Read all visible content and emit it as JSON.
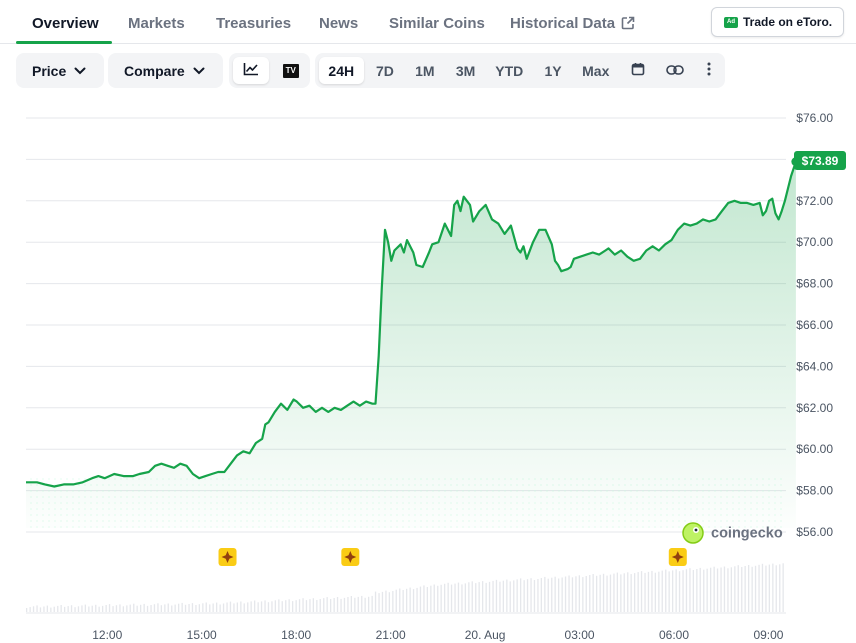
{
  "tabs": [
    {
      "label": "Overview",
      "active": true
    },
    {
      "label": "Markets"
    },
    {
      "label": "Treasuries"
    },
    {
      "label": "News"
    },
    {
      "label": "Similar Coins"
    },
    {
      "label": "Historical Data",
      "icon": "external-link-icon"
    }
  ],
  "ad_button": {
    "badge": "Ad",
    "label": "Trade on eToro."
  },
  "toolbar": {
    "price_label": "Price",
    "compare_label": "Compare",
    "chart_type_icons": [
      "line-chart-icon",
      "tradingview-icon"
    ],
    "tradingview_logo_text": "TV",
    "ranges": [
      "24H",
      "7D",
      "1M",
      "3M",
      "YTD",
      "1Y",
      "Max"
    ],
    "active_range": "24H",
    "action_icons": [
      "calendar-icon",
      "link-icon",
      "more-vertical-icon"
    ]
  },
  "watermark": "coingecko",
  "colors": {
    "accent": "#16a34a",
    "line": "#16a34a",
    "grid": "#e5e7eb",
    "event_marker": "#facc15"
  },
  "chart_data": {
    "type": "area",
    "y_ticks": [
      "$76.00",
      "$74.00",
      "$72.00",
      "$70.00",
      "$68.00",
      "$66.00",
      "$64.00",
      "$62.00",
      "$60.00",
      "$58.00",
      "$56.00"
    ],
    "ylim": [
      55,
      76
    ],
    "x_ticks": [
      {
        "label": "12:00",
        "t": 2.58
      },
      {
        "label": "15:00",
        "t": 5.58
      },
      {
        "label": "18:00",
        "t": 8.58
      },
      {
        "label": "21:00",
        "t": 11.58
      },
      {
        "label": "20. Aug",
        "t": 14.58
      },
      {
        "label": "03:00",
        "t": 17.58
      },
      {
        "label": "06:00",
        "t": 20.58
      },
      {
        "label": "09:00",
        "t": 23.58
      }
    ],
    "x_range_hours": [
      0,
      24.2
    ],
    "current_price": "$73.89",
    "event_markers_t": [
      6.4,
      10.3,
      20.7
    ],
    "series": [
      {
        "values": [
          [
            0.0,
            58.4
          ],
          [
            0.35,
            58.4
          ],
          [
            0.6,
            58.3
          ],
          [
            0.9,
            58.2
          ],
          [
            1.2,
            58.3
          ],
          [
            1.5,
            58.3
          ],
          [
            1.8,
            58.4
          ],
          [
            2.1,
            58.6
          ],
          [
            2.3,
            58.7
          ],
          [
            2.5,
            58.6
          ],
          [
            2.8,
            58.8
          ],
          [
            3.1,
            58.7
          ],
          [
            3.4,
            58.7
          ],
          [
            3.6,
            58.8
          ],
          [
            3.9,
            58.9
          ],
          [
            4.1,
            59.2
          ],
          [
            4.3,
            59.3
          ],
          [
            4.5,
            59.2
          ],
          [
            4.7,
            59.1
          ],
          [
            4.9,
            59.3
          ],
          [
            5.1,
            59.2
          ],
          [
            5.3,
            58.8
          ],
          [
            5.5,
            58.6
          ],
          [
            5.7,
            58.7
          ],
          [
            5.9,
            58.8
          ],
          [
            6.1,
            58.9
          ],
          [
            6.3,
            58.9
          ],
          [
            6.5,
            59.3
          ],
          [
            6.7,
            59.7
          ],
          [
            6.9,
            59.9
          ],
          [
            7.1,
            59.8
          ],
          [
            7.3,
            60.3
          ],
          [
            7.5,
            60.5
          ],
          [
            7.6,
            61.2
          ],
          [
            7.7,
            61.3
          ],
          [
            7.9,
            61.8
          ],
          [
            8.0,
            62.0
          ],
          [
            8.1,
            62.2
          ],
          [
            8.3,
            61.9
          ],
          [
            8.5,
            62.4
          ],
          [
            8.6,
            62.3
          ],
          [
            8.8,
            62.0
          ],
          [
            9.0,
            62.1
          ],
          [
            9.2,
            61.8
          ],
          [
            9.4,
            62.0
          ],
          [
            9.6,
            61.8
          ],
          [
            9.8,
            62.0
          ],
          [
            10.0,
            61.9
          ],
          [
            10.2,
            62.1
          ],
          [
            10.4,
            62.3
          ],
          [
            10.6,
            62.1
          ],
          [
            10.8,
            62.3
          ],
          [
            11.0,
            62.2
          ],
          [
            11.1,
            62.2
          ],
          [
            11.2,
            64.5
          ],
          [
            11.3,
            67.8
          ],
          [
            11.4,
            70.6
          ],
          [
            11.5,
            70.0
          ],
          [
            11.6,
            69.1
          ],
          [
            11.7,
            69.6
          ],
          [
            11.9,
            69.9
          ],
          [
            12.0,
            69.5
          ],
          [
            12.1,
            70.1
          ],
          [
            12.3,
            69.5
          ],
          [
            12.4,
            68.9
          ],
          [
            12.6,
            68.8
          ],
          [
            12.8,
            69.5
          ],
          [
            12.9,
            69.9
          ],
          [
            13.1,
            70.0
          ],
          [
            13.3,
            70.9
          ],
          [
            13.5,
            70.3
          ],
          [
            13.6,
            71.8
          ],
          [
            13.7,
            72.0
          ],
          [
            13.8,
            71.5
          ],
          [
            13.9,
            72.2
          ],
          [
            14.1,
            71.8
          ],
          [
            14.2,
            71.0
          ],
          [
            14.4,
            71.5
          ],
          [
            14.6,
            71.8
          ],
          [
            14.8,
            71.1
          ],
          [
            15.0,
            70.9
          ],
          [
            15.2,
            70.4
          ],
          [
            15.4,
            70.8
          ],
          [
            15.6,
            69.7
          ],
          [
            15.7,
            69.5
          ],
          [
            15.8,
            69.8
          ],
          [
            15.9,
            69.2
          ],
          [
            16.1,
            70.0
          ],
          [
            16.3,
            70.6
          ],
          [
            16.5,
            70.6
          ],
          [
            16.7,
            69.9
          ],
          [
            16.8,
            69.1
          ],
          [
            16.9,
            68.9
          ],
          [
            17.0,
            68.6
          ],
          [
            17.2,
            68.7
          ],
          [
            17.3,
            68.8
          ],
          [
            17.4,
            69.2
          ],
          [
            17.6,
            69.3
          ],
          [
            17.8,
            69.4
          ],
          [
            18.0,
            69.5
          ],
          [
            18.2,
            69.4
          ],
          [
            18.4,
            69.6
          ],
          [
            18.5,
            69.7
          ],
          [
            18.7,
            69.4
          ],
          [
            18.9,
            69.6
          ],
          [
            19.1,
            69.3
          ],
          [
            19.3,
            69.1
          ],
          [
            19.5,
            69.2
          ],
          [
            19.7,
            69.6
          ],
          [
            19.9,
            69.8
          ],
          [
            20.1,
            69.6
          ],
          [
            20.3,
            69.9
          ],
          [
            20.5,
            70.1
          ],
          [
            20.7,
            70.6
          ],
          [
            20.9,
            70.9
          ],
          [
            21.1,
            70.8
          ],
          [
            21.3,
            70.9
          ],
          [
            21.5,
            71.1
          ],
          [
            21.7,
            71.0
          ],
          [
            21.9,
            71.1
          ],
          [
            22.1,
            71.5
          ],
          [
            22.3,
            71.9
          ],
          [
            22.5,
            72.0
          ],
          [
            22.7,
            71.9
          ],
          [
            22.9,
            71.9
          ],
          [
            23.1,
            71.8
          ],
          [
            23.3,
            71.9
          ],
          [
            23.4,
            71.3
          ],
          [
            23.5,
            71.5
          ],
          [
            23.6,
            72.0
          ],
          [
            23.7,
            72.1
          ],
          [
            23.8,
            71.4
          ],
          [
            23.9,
            71.1
          ],
          [
            24.0,
            71.5
          ],
          [
            24.1,
            72.0
          ],
          [
            24.2,
            72.6
          ],
          [
            24.3,
            73.2
          ],
          [
            24.45,
            73.89
          ]
        ]
      }
    ],
    "volume_bars": 220
  }
}
